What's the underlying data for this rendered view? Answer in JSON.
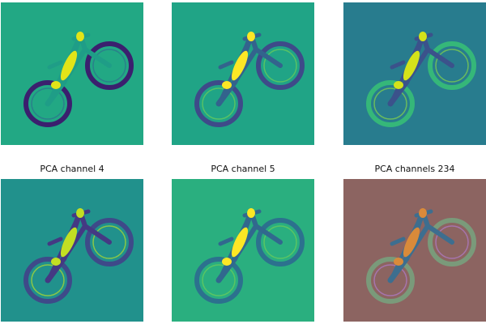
{
  "panels": [
    {
      "title": "",
      "background": "#22a884",
      "frame": "#1f9d87",
      "wheel": "#3b1f6e",
      "frame_accent": "#e2e418",
      "wheel_inner": "#2e6f8e"
    },
    {
      "title": "",
      "background": "#20a486",
      "frame": "#33638d",
      "wheel": "#3e4a89",
      "frame_accent": "#fde725",
      "wheel_inner": "#6ece58"
    },
    {
      "title": "",
      "background": "#287c8e",
      "frame": "#3b528b",
      "wheel": "#35b779",
      "frame_accent": "#d5e21a",
      "wheel_inner": "#86d549"
    },
    {
      "title": "PCA channel 4",
      "background": "#21918c",
      "frame": "#443983",
      "wheel": "#3e4a89",
      "frame_accent": "#c2df23",
      "wheel_inner": "#b5de2b"
    },
    {
      "title": "PCA channel 5",
      "background": "#2aaf7f",
      "frame": "#31688e",
      "wheel": "#2c718e",
      "frame_accent": "#fde725",
      "wheel_inner": "#6ece58"
    },
    {
      "title": "PCA channels 234",
      "background": "#8c6461",
      "frame": "#3d6e8f",
      "wheel": "#7a9a7a",
      "frame_accent": "#d98a3a",
      "wheel_inner": "#b07acc"
    }
  ]
}
